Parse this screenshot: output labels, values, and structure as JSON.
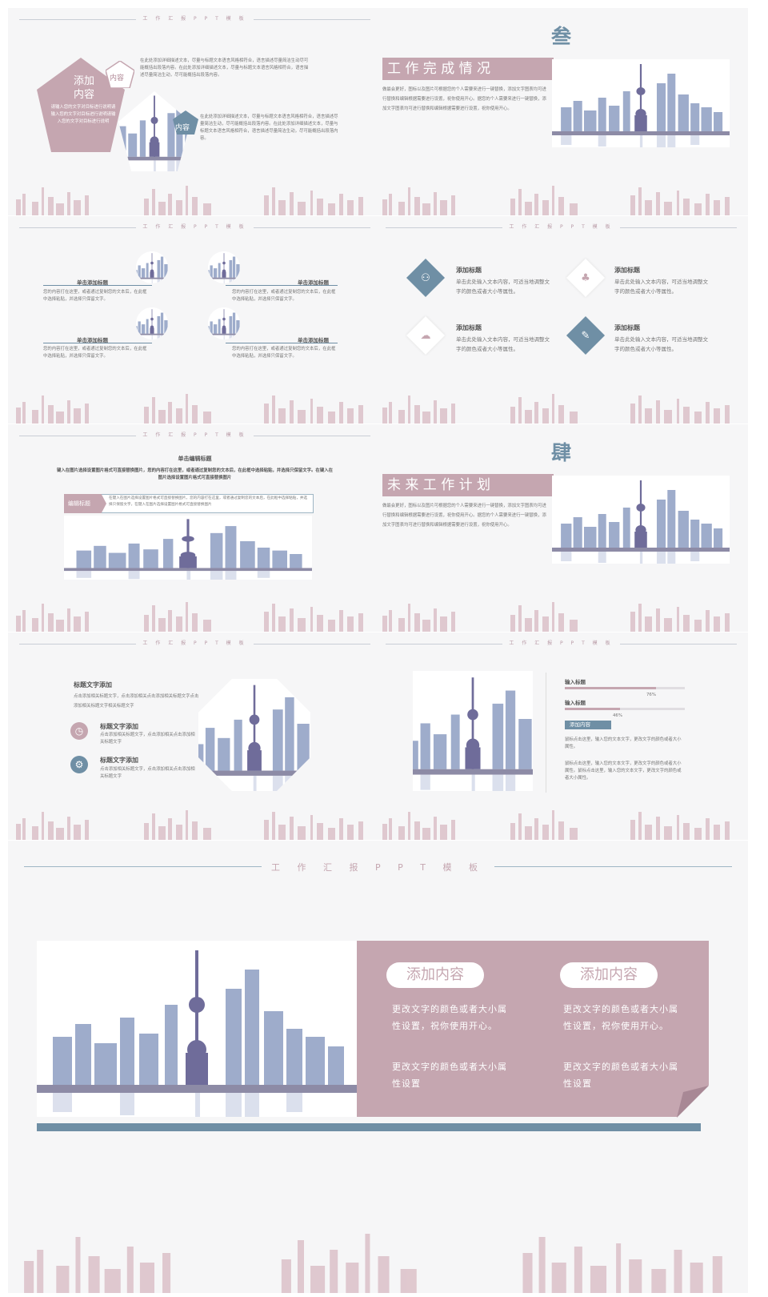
{
  "header_text": "工 作 汇 报 P P T 模 板",
  "slide1": {
    "big_label": "添加\n内容",
    "tag1": "内容",
    "tag2": "内容",
    "intro": "请输入您的文字对目标进行说明请输入您的文字对目标进行说明请输入您的文字对目标进行说明",
    "para1": "在此处添加详细描述文本，尽量与标题文本语言风格相符合，语言描述尽量简洁生动尽可能概括出段落内容。在此处添加详细描述文本，尽量与标题文本语言风格相符合，语言描述尽量简洁生动，尽可能概括出段落内容。",
    "para2": "在此处添加详细描述文本，尽量与标题文本语言风格相符合，语言描述尽量简洁生动，尽可能概括出段落内容。在此处添加详细描述文本，尽量与标题文本语言风格相符合，语言描述尽量简洁生动，尽可能概括出段落内容。"
  },
  "slide2": {
    "numeral": "叁",
    "title": "工 作 完 成 情 况",
    "body": "做最会更好，图标以及图片可根据您的个人需要来进行一键替换，添加文字图表均可进行替换和编辑根据需要进行设置，祝你使用开心。据您的个人需要来进行一键替换，添加文字图表均可进行替换和编辑根据需要进行设置，祝你使用开心。"
  },
  "slide3": {
    "items": [
      {
        "title": "单击添加标题",
        "text": "您的内容打在这里，或者通过复制您的文本后，在此框中选择粘贴，并选择只保留文字。"
      },
      {
        "title": "单击添加标题",
        "text": "您的内容打在这里，或者通过复制您的文本后，在此框中选择粘贴，并选择只保留文字。"
      },
      {
        "title": "单击添加标题",
        "text": "您的内容打在这里，或者通过复制您的文本后，在此框中选择粘贴，并选择只保留文字。"
      },
      {
        "title": "单击添加标题",
        "text": "您的内容打在这里，或者通过复制您的文本后，在此框中选择粘贴，并选择只保留文字。"
      }
    ]
  },
  "slide4": {
    "items": [
      {
        "title": "添加标题",
        "text": "单击此处输入文本内容，可适当地调整文字的颜色或者大小等属性。",
        "icon": "sitemap-icon"
      },
      {
        "title": "添加标题",
        "text": "单击此处输入文本内容，可适当地调整文字的颜色或者大小等属性。",
        "icon": "acorn-icon"
      },
      {
        "title": "添加标题",
        "text": "单击此处输入文本内容，可适当地调整文字的颜色或者大小等属性。",
        "icon": "cloud-icon"
      },
      {
        "title": "添加标题",
        "text": "单击此处输入文本内容，可适当地调整文字的颜色或者大小等属性。",
        "icon": "pencil-icon"
      }
    ]
  },
  "slide5": {
    "title": "单击编辑标题",
    "subtitle": "键入在图片选择设置图片格式可直接替换图片，您的内容打在这里，或者通过复制您的文本后，在此框中选择粘贴，并选择只保留文字。在键入在图片选择设置图片格式可直接替换图片",
    "tag": "编辑标题",
    "tag_text": "在键入在图片选择设置图片格式可直接替换图片，您的内容打在这里，或者通过复制您的文本后，在此框中选择粘贴，并选择只保留文字，在键入在图片选择设置图片格式可直接替换图片"
  },
  "slide6": {
    "numeral": "肆",
    "title": "未 来 工 作 计 划",
    "body": "做最会更好，图标以及图片可根据您的个人需要来进行一键替换，添加文字图表均可进行替换和编辑根据需要进行设置，祝你使用开心。据您的个人需要来进行一键替换，添加文字图表均可进行替换和编辑根据需要进行设置，祝你使用开心。"
  },
  "slide7": {
    "title": "标题文字添加",
    "desc": "点击添加相关标题文字，点击添加相关点击添加相关标题文字点击添加相关标题文字相关标题文字",
    "items": [
      {
        "title": "标题文字添加",
        "text": "点击添加相关标题文字，点击添加相关点击添加相关标题文字",
        "icon": "clock-icon"
      },
      {
        "title": "标题文字添加",
        "text": "点击添加相关标题文字，点击添加相关点击添加相关标题文字",
        "icon": "gear-icon"
      }
    ]
  },
  "slide8": {
    "bars": [
      {
        "label": "输入标题",
        "value": 76,
        "value_text": "76%"
      },
      {
        "label": "输入标题",
        "value": 46,
        "value_text": "46%"
      }
    ],
    "tag": "添加内容",
    "text1": "鼠标点击这里，输入您的文本文字，更改文字的颜色或者大小属性。",
    "text2": "鼠标点击这里，输入您的文本文字，更改文字的颜色或者大小属性。鼠标点击这里，输入您的文本文字，更改文字的颜色或者大小属性。"
  },
  "slide9": {
    "col1": {
      "pill": "添加内容",
      "text1": "更改文字的颜色或者大小属性设置，祝你使用开心。",
      "text2": "更改文字的颜色或者大小属性设置"
    },
    "col2": {
      "pill": "添加内容",
      "text1": "更改文字的颜色或者大小属性设置，祝你使用开心。",
      "text2": "更改文字的颜色或者大小属性设置"
    }
  },
  "colors": {
    "accent_pink": "#c5a6b0",
    "accent_blue": "#6f8fa5",
    "background": "#f6f6f7"
  }
}
